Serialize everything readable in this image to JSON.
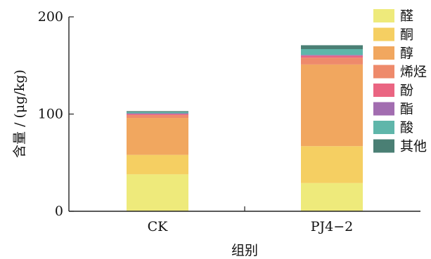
{
  "chart_data": {
    "type": "bar",
    "stacked": true,
    "categories": [
      "CK",
      "PJ4−2"
    ],
    "series": [
      {
        "name": "醛",
        "color": "#eeea7b",
        "values": [
          38,
          29
        ]
      },
      {
        "name": "酮",
        "color": "#f5cf62",
        "values": [
          20,
          38
        ]
      },
      {
        "name": "醇",
        "color": "#f1a75f",
        "values": [
          38,
          84
        ]
      },
      {
        "name": "烯烃",
        "color": "#ee8a6b",
        "values": [
          3,
          7
        ]
      },
      {
        "name": "酚",
        "color": "#ea6582",
        "values": [
          1,
          2
        ]
      },
      {
        "name": "酯",
        "color": "#a26db0",
        "values": [
          0.7,
          0.8
        ]
      },
      {
        "name": "酸",
        "color": "#5fb6aa",
        "values": [
          1.3,
          6
        ]
      },
      {
        "name": "其他",
        "color": "#4a7f74",
        "values": [
          1,
          4
        ]
      }
    ],
    "xlabel": "组别",
    "ylabel": "含量 / (μg/kg)",
    "ylim": [
      0,
      200
    ],
    "yticks": [
      0,
      100,
      200
    ],
    "grid": false,
    "legend_position": "right"
  }
}
